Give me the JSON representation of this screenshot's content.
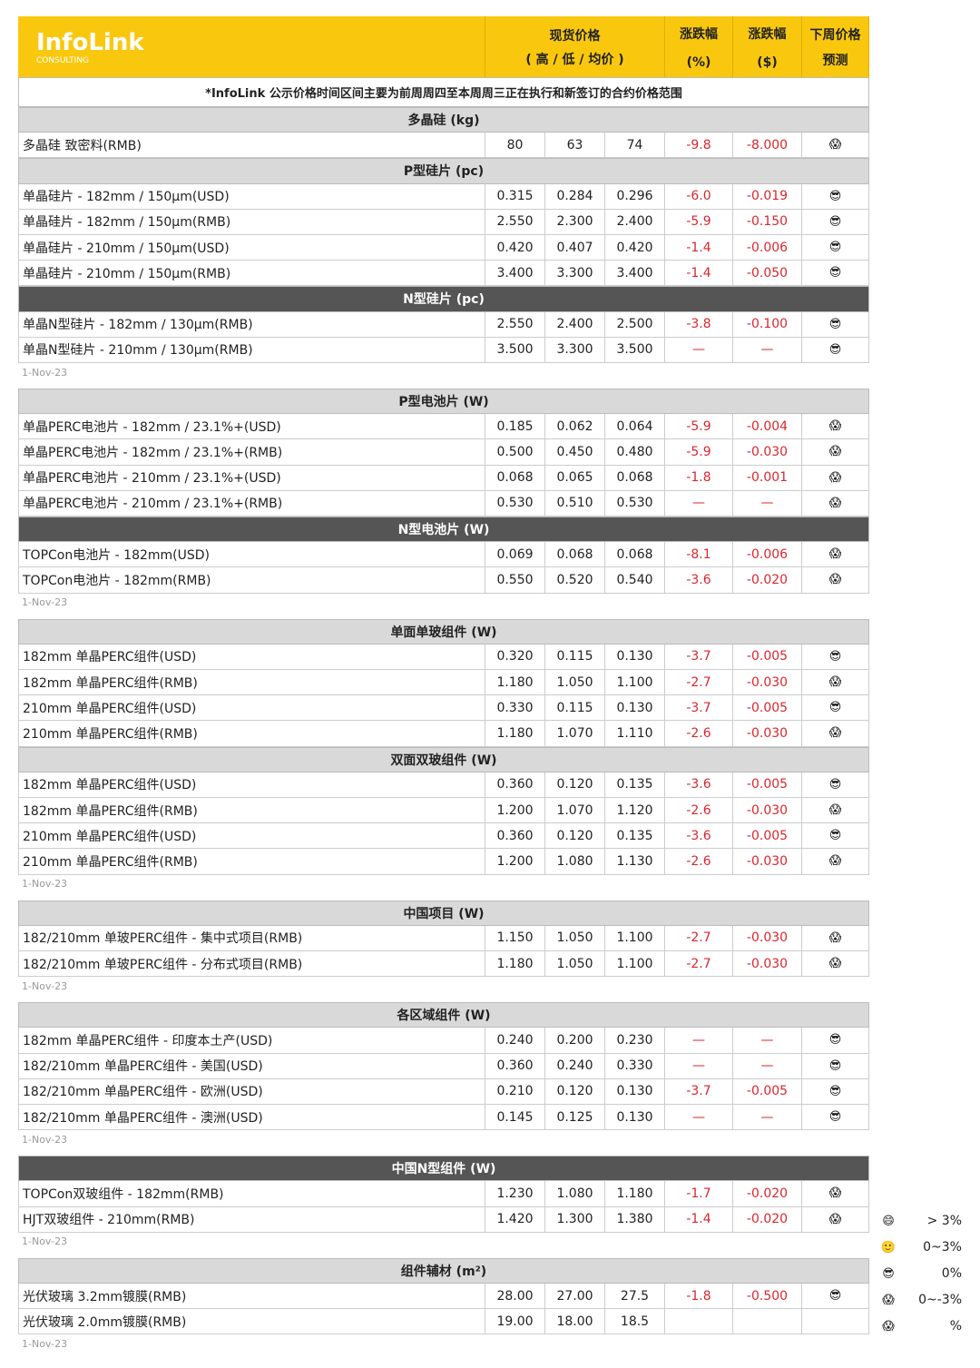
{
  "header": {
    "logo": "InfoLink",
    "logo_sub": "CONSULTING",
    "price": "现货价格",
    "price_sub": "( 高 / 低 / 均价 )",
    "pct": "涨跌幅",
    "pct_unit": "(%)",
    "usd": "涨跌幅",
    "usd_unit": "($)",
    "forecast": "下周价格",
    "forecast_sub": "预测"
  },
  "note": "*InfoLink 公示价格时间区间主要为前周周四至本周周三正在执行和新签订的合约价格范围",
  "blocks": [
    {
      "date": "1-Nov-23",
      "sections": [
        {
          "title": "多晶硅 (kg)",
          "dark": false,
          "rows": [
            [
              "多晶硅 致密料(RMB)",
              "80",
              "63",
              "74",
              "-9.8",
              "-8.000",
              "😱"
            ]
          ]
        },
        {
          "title": "P型硅片 (pc)",
          "dark": false,
          "rows": [
            [
              "单晶硅片 - 182mm / 150μm(USD)",
              "0.315",
              "0.284",
              "0.296",
              "-6.0",
              "-0.019",
              "😎"
            ],
            [
              "单晶硅片 - 182mm / 150μm(RMB)",
              "2.550",
              "2.300",
              "2.400",
              "-5.9",
              "-0.150",
              "😎"
            ],
            [
              "单晶硅片 - 210mm / 150μm(USD)",
              "0.420",
              "0.407",
              "0.420",
              "-1.4",
              "-0.006",
              "😎"
            ],
            [
              "单晶硅片 - 210mm / 150μm(RMB)",
              "3.400",
              "3.300",
              "3.400",
              "-1.4",
              "-0.050",
              "😎"
            ]
          ]
        },
        {
          "title": "N型硅片 (pc)",
          "dark": true,
          "rows": [
            [
              "单晶N型硅片 - 182mm / 130μm(RMB)",
              "2.550",
              "2.400",
              "2.500",
              "-3.8",
              "-0.100",
              "😎"
            ],
            [
              "单晶N型硅片 - 210mm / 130μm(RMB)",
              "3.500",
              "3.300",
              "3.500",
              "—",
              "—",
              "😎"
            ]
          ]
        }
      ]
    },
    {
      "date": "1-Nov-23",
      "sections": [
        {
          "title": "P型电池片 (W)",
          "dark": false,
          "rows": [
            [
              "单晶PERC电池片 - 182mm / 23.1%+(USD)",
              "0.185",
              "0.062",
              "0.064",
              "-5.9",
              "-0.004",
              "😱"
            ],
            [
              "单晶PERC电池片 - 182mm / 23.1%+(RMB)",
              "0.500",
              "0.450",
              "0.480",
              "-5.9",
              "-0.030",
              "😱"
            ],
            [
              "单晶PERC电池片 - 210mm / 23.1%+(USD)",
              "0.068",
              "0.065",
              "0.068",
              "-1.8",
              "-0.001",
              "😱"
            ],
            [
              "单晶PERC电池片 - 210mm / 23.1%+(RMB)",
              "0.530",
              "0.510",
              "0.530",
              "—",
              "—",
              "😱"
            ]
          ]
        },
        {
          "title": "N型电池片 (W)",
          "dark": true,
          "rows": [
            [
              "TOPCon电池片 - 182mm(USD)",
              "0.069",
              "0.068",
              "0.068",
              "-8.1",
              "-0.006",
              "😱"
            ],
            [
              "TOPCon电池片 - 182mm(RMB)",
              "0.550",
              "0.520",
              "0.540",
              "-3.6",
              "-0.020",
              "😱"
            ]
          ]
        }
      ]
    },
    {
      "date": "1-Nov-23",
      "sections": [
        {
          "title": "单面单玻组件 (W)",
          "dark": false,
          "rows": [
            [
              "182mm 单晶PERC组件(USD)",
              "0.320",
              "0.115",
              "0.130",
              "-3.7",
              "-0.005",
              "😎"
            ],
            [
              "182mm 单晶PERC组件(RMB)",
              "1.180",
              "1.050",
              "1.100",
              "-2.7",
              "-0.030",
              "😱"
            ],
            [
              "210mm 单晶PERC组件(USD)",
              "0.330",
              "0.115",
              "0.130",
              "-3.7",
              "-0.005",
              "😎"
            ],
            [
              "210mm 单晶PERC组件(RMB)",
              "1.180",
              "1.070",
              "1.110",
              "-2.6",
              "-0.030",
              "😱"
            ]
          ]
        },
        {
          "title": "双面双玻组件 (W)",
          "dark": false,
          "rows": [
            [
              "182mm 单晶PERC组件(USD)",
              "0.360",
              "0.120",
              "0.135",
              "-3.6",
              "-0.005",
              "😎"
            ],
            [
              "182mm 单晶PERC组件(RMB)",
              "1.200",
              "1.070",
              "1.120",
              "-2.6",
              "-0.030",
              "😱"
            ],
            [
              "210mm 单晶PERC组件(USD)",
              "0.360",
              "0.120",
              "0.135",
              "-3.6",
              "-0.005",
              "😎"
            ],
            [
              "210mm 单晶PERC组件(RMB)",
              "1.200",
              "1.080",
              "1.130",
              "-2.6",
              "-0.030",
              "😱"
            ]
          ]
        }
      ]
    },
    {
      "date": "1-Nov-23",
      "sections": [
        {
          "title": "中国项目 (W)",
          "dark": false,
          "rows": [
            [
              "182/210mm 单玻PERC组件 - 集中式项目(RMB)",
              "1.150",
              "1.050",
              "1.100",
              "-2.7",
              "-0.030",
              "😱"
            ],
            [
              "182/210mm 单玻PERC组件 - 分布式项目(RMB)",
              "1.180",
              "1.050",
              "1.100",
              "-2.7",
              "-0.030",
              "😱"
            ]
          ]
        }
      ]
    },
    {
      "date": "1-Nov-23",
      "sections": [
        {
          "title": "各区域组件 (W)",
          "dark": false,
          "rows": [
            [
              "182mm 单晶PERC组件 - 印度本土产(USD)",
              "0.240",
              "0.200",
              "0.230",
              "—",
              "—",
              "😎"
            ],
            [
              "182/210mm 单晶PERC组件 - 美国(USD)",
              "0.360",
              "0.240",
              "0.330",
              "—",
              "—",
              "😎"
            ],
            [
              "182/210mm 单晶PERC组件 - 欧洲(USD)",
              "0.210",
              "0.120",
              "0.130",
              "-3.7",
              "-0.005",
              "😎"
            ],
            [
              "182/210mm 单晶PERC组件 - 澳洲(USD)",
              "0.145",
              "0.125",
              "0.130",
              "—",
              "—",
              "😎"
            ]
          ]
        }
      ]
    },
    {
      "date": "1-Nov-23",
      "sections": [
        {
          "title": "中国N型组件 (W)",
          "dark": true,
          "rows": [
            [
              "TOPCon双玻组件 - 182mm(RMB)",
              "1.230",
              "1.080",
              "1.180",
              "-1.7",
              "-0.020",
              "😱"
            ],
            [
              "HJT双玻组件 - 210mm(RMB)",
              "1.420",
              "1.300",
              "1.380",
              "-1.4",
              "-0.020",
              "😱"
            ]
          ]
        }
      ]
    },
    {
      "date": "1-Nov-23",
      "sections": [
        {
          "title": "组件辅材 (m²)",
          "dark": false,
          "rows": [
            [
              "光伏玻璃 3.2mm镀膜(RMB)",
              "28.00",
              "27.00",
              "27.5",
              "-1.8",
              "-0.500",
              "😎"
            ],
            [
              "光伏玻璃 2.0mm镀膜(RMB)",
              "19.00",
              "18.00",
              "18.5",
              null,
              null,
              null
            ]
          ]
        }
      ]
    }
  ],
  "legend": [
    {
      "icon": "😄",
      "label": "> 3%"
    },
    {
      "icon": "🙂",
      "label": "0~3%"
    },
    {
      "icon": "😎",
      "label": "0%"
    },
    {
      "icon": "😱",
      "label": "0~-3%"
    },
    {
      "icon": "😱",
      "label": "%"
    }
  ]
}
